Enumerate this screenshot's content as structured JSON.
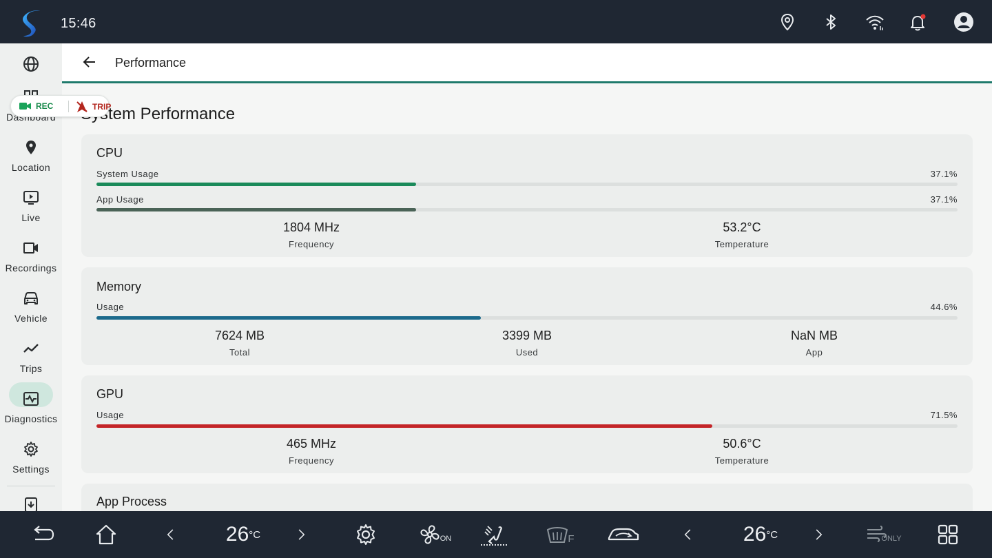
{
  "status": {
    "time": "15:46"
  },
  "nav": {
    "items": [
      {
        "label": ""
      },
      {
        "label": "Dashboard"
      },
      {
        "label": "Location"
      },
      {
        "label": "Live"
      },
      {
        "label": "Recordings"
      },
      {
        "label": "Vehicle"
      },
      {
        "label": "Trips"
      },
      {
        "label": "Diagnostics"
      },
      {
        "label": "Settings"
      }
    ],
    "active": "Diagnostics"
  },
  "badge": {
    "rec": "REC",
    "trip": "TRIP"
  },
  "header": {
    "title": "Performance"
  },
  "page": {
    "title": "System Performance"
  },
  "cpu": {
    "title": "CPU",
    "system_usage_label": "System Usage",
    "system_usage_pct": "37.1%",
    "system_usage_value": 0.371,
    "app_usage_label": "App Usage",
    "app_usage_pct": "37.1%",
    "app_usage_value": 0.371,
    "frequency": "1804 MHz",
    "frequency_label": "Frequency",
    "temperature": "53.2°C",
    "temperature_label": "Temperature"
  },
  "memory": {
    "title": "Memory",
    "usage_label": "Usage",
    "usage_pct": "44.6%",
    "usage_value": 0.446,
    "total": "7624 MB",
    "total_label": "Total",
    "used": "3399 MB",
    "used_label": "Used",
    "app": "NaN MB",
    "app_label": "App"
  },
  "gpu": {
    "title": "GPU",
    "usage_label": "Usage",
    "usage_pct": "71.5%",
    "usage_value": 0.715,
    "frequency": "465 MHz",
    "frequency_label": "Frequency",
    "temperature": "50.6°C",
    "temperature_label": "Temperature"
  },
  "app_process": {
    "title": "App Process"
  },
  "climate": {
    "left_temp": "26",
    "right_temp": "26",
    "unit": "°C",
    "fan_state": "ON",
    "defrost_label": "F",
    "recirc_label": "ONLY"
  },
  "colors": {
    "cpu_system": "#1a8a5a",
    "cpu_app": "#4a6357",
    "memory": "#1c6a8c",
    "gpu": "#c42528",
    "accent": "#1f7a6c"
  },
  "icons": [
    "app-logo-icon",
    "location-pin-icon",
    "bluetooth-icon",
    "wifi-icon",
    "notification-bell-icon",
    "account-icon",
    "globe-icon",
    "grid-icon",
    "map-pin-icon",
    "play-screen-icon",
    "video-camera-icon",
    "car-icon",
    "trending-line-icon",
    "pulse-icon",
    "gear-icon",
    "download-icon",
    "back-arrow-icon",
    "home-icon",
    "chevron-left-icon",
    "chevron-right-icon",
    "settings-gear-icon",
    "fan-icon",
    "seat-airflow-icon",
    "rear-defrost-icon",
    "car-recirculation-icon",
    "fresh-air-icon",
    "apps-grid-icon"
  ]
}
